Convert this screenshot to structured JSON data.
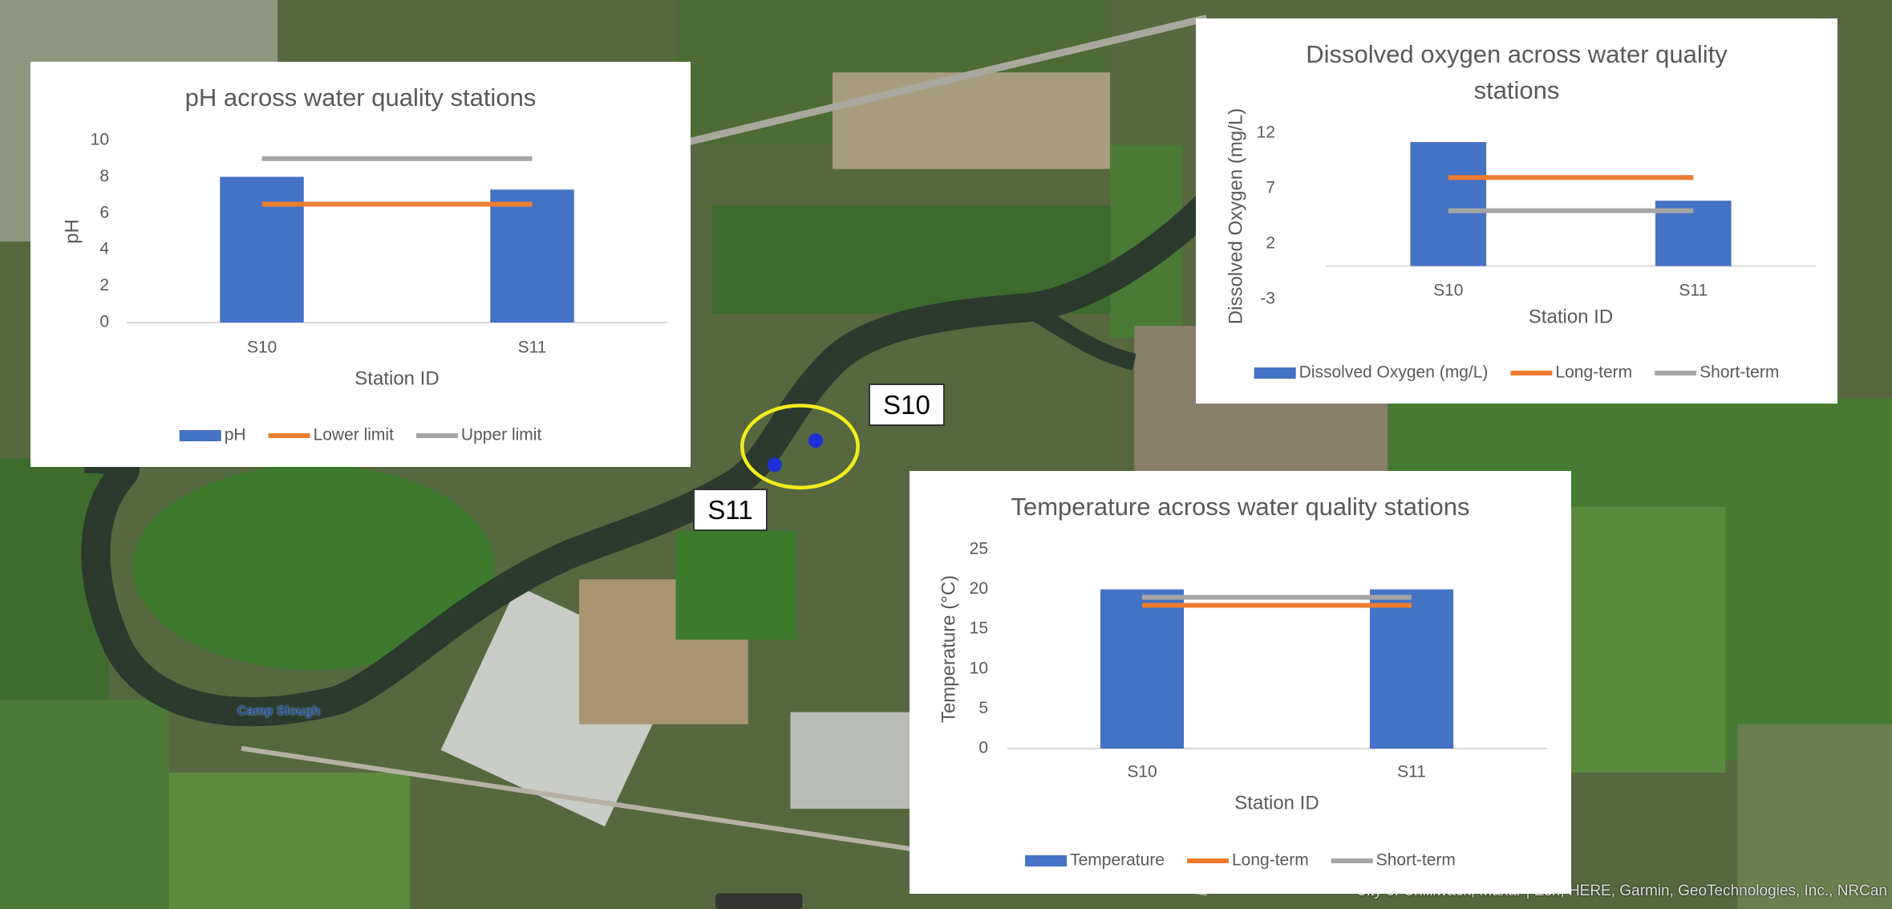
{
  "chart_data": [
    {
      "type": "bar",
      "title": "pH across water quality stations",
      "x_label": "Station ID",
      "y_label": "pH",
      "categories": [
        "S10",
        "S11"
      ],
      "ylim": [
        0,
        10
      ],
      "yticks": [
        0,
        2,
        4,
        6,
        8,
        10
      ],
      "series": [
        {
          "name": "pH",
          "type": "bar",
          "color": "#4472c4",
          "values": [
            8.0,
            7.3
          ]
        },
        {
          "name": "Lower limit",
          "type": "line",
          "color": "#ed7d31",
          "values": [
            6.5,
            6.5
          ]
        },
        {
          "name": "Upper limit",
          "type": "line",
          "color": "#a5a5a5",
          "values": [
            9.0,
            9.0
          ]
        }
      ]
    },
    {
      "type": "bar",
      "title": "Dissolved oxygen across water quality stations",
      "x_label": "Station ID",
      "y_label": "Dissolved Oxygen (mg/L)",
      "categories": [
        "S10",
        "S11"
      ],
      "ylim": [
        -3,
        12
      ],
      "yticks": [
        -3,
        2,
        7,
        12
      ],
      "series": [
        {
          "name": "Dissolved Oxygen (mg/L)",
          "type": "bar",
          "color": "#4472c4",
          "values": [
            11.2,
            5.9
          ]
        },
        {
          "name": "Long-term",
          "type": "line",
          "color": "#ed7d31",
          "values": [
            8,
            8
          ]
        },
        {
          "name": "Short-term",
          "type": "line",
          "color": "#a5a5a5",
          "values": [
            5,
            5
          ]
        }
      ]
    },
    {
      "type": "bar",
      "title": "Temperature across water quality stations",
      "x_label": "Station ID",
      "y_label": "Temperature (°C)",
      "categories": [
        "S10",
        "S11"
      ],
      "ylim": [
        0,
        25
      ],
      "yticks": [
        0,
        5,
        10,
        15,
        20,
        25
      ],
      "series": [
        {
          "name": "Temperature",
          "type": "bar",
          "color": "#4472c4",
          "values": [
            20,
            20
          ]
        },
        {
          "name": "Long-term",
          "type": "line",
          "color": "#ed7d31",
          "values": [
            18,
            18
          ]
        },
        {
          "name": "Short-term",
          "type": "line",
          "color": "#a5a5a5",
          "values": [
            19,
            19
          ]
        }
      ]
    }
  ],
  "map": {
    "stations": [
      "S10",
      "S11"
    ],
    "place_label": "Camp Slough",
    "attribution": "City of Chilliwack, Maxar | Esri, HERE, Garmin, GeoTechnologies, Inc., NRCan"
  }
}
